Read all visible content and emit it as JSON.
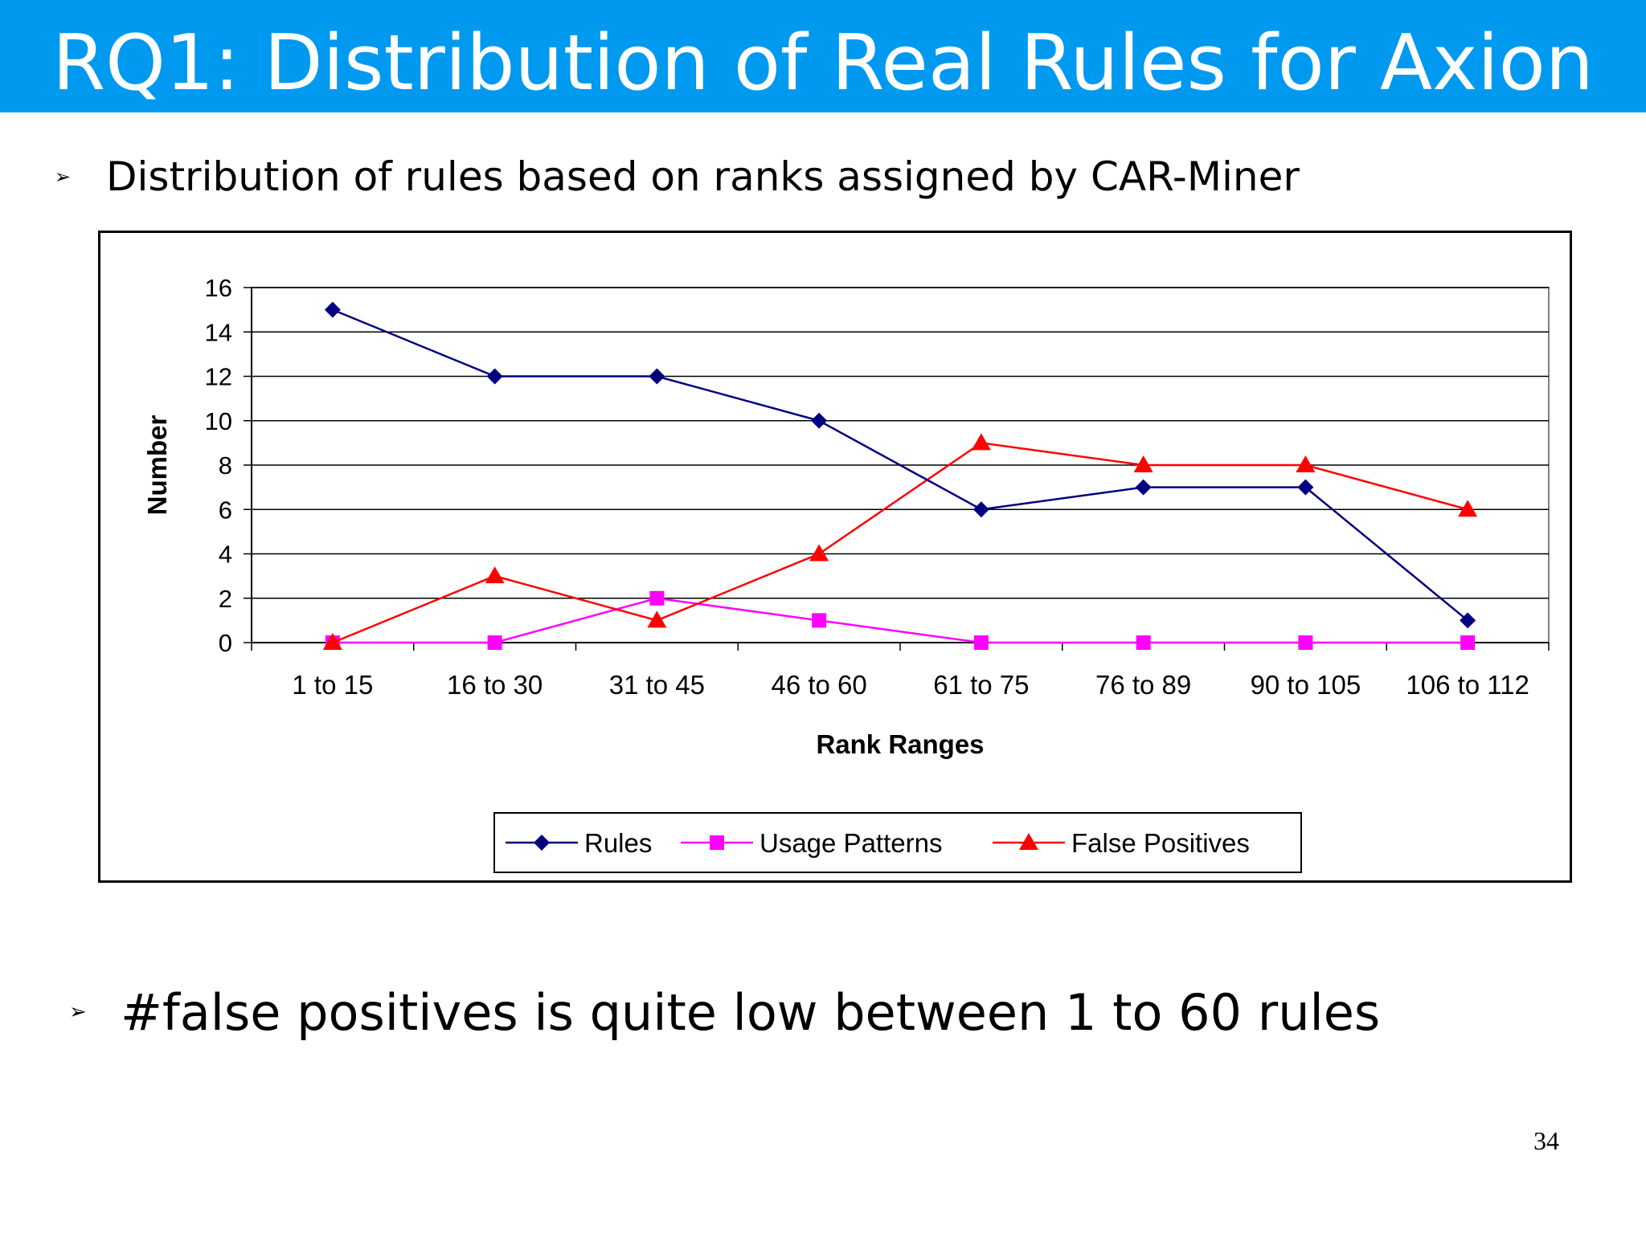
{
  "slide": {
    "title": "RQ1: Distribution of Real Rules for Axion",
    "bullets": [
      "Distribution of rules based on ranks assigned by CAR-Miner",
      "#false positives is quite low between 1 to 60 rules"
    ],
    "bullet_icon": "arrow-bullet-icon",
    "bullet_glyph": "➢",
    "page_number": "34",
    "colors": {
      "title_bar": "#0099f0",
      "title_text": "#ffffff"
    }
  },
  "chart_data": {
    "type": "line",
    "title": "",
    "xlabel": "Rank Ranges",
    "ylabel": "Number",
    "categories": [
      "1 to 15",
      "16 to 30",
      "31 to 45",
      "46 to 60",
      "61 to 75",
      "76 to 89",
      "90 to 105",
      "106 to 112"
    ],
    "ylim": [
      0,
      16
    ],
    "yticks": [
      0,
      2,
      4,
      6,
      8,
      10,
      12,
      14,
      16
    ],
    "grid": true,
    "legend": "bottom",
    "series": [
      {
        "name": "Rules",
        "color": "#000080",
        "marker": "diamond",
        "values": [
          15,
          12,
          12,
          10,
          6,
          7,
          7,
          1
        ]
      },
      {
        "name": "Usage Patterns",
        "color": "#ff00ff",
        "marker": "square",
        "values": [
          0,
          0,
          2,
          1,
          0,
          0,
          0,
          0
        ]
      },
      {
        "name": "False Positives",
        "color": "#ff0000",
        "marker": "triangle",
        "values": [
          0,
          3,
          1,
          4,
          9,
          8,
          8,
          6
        ]
      }
    ]
  }
}
